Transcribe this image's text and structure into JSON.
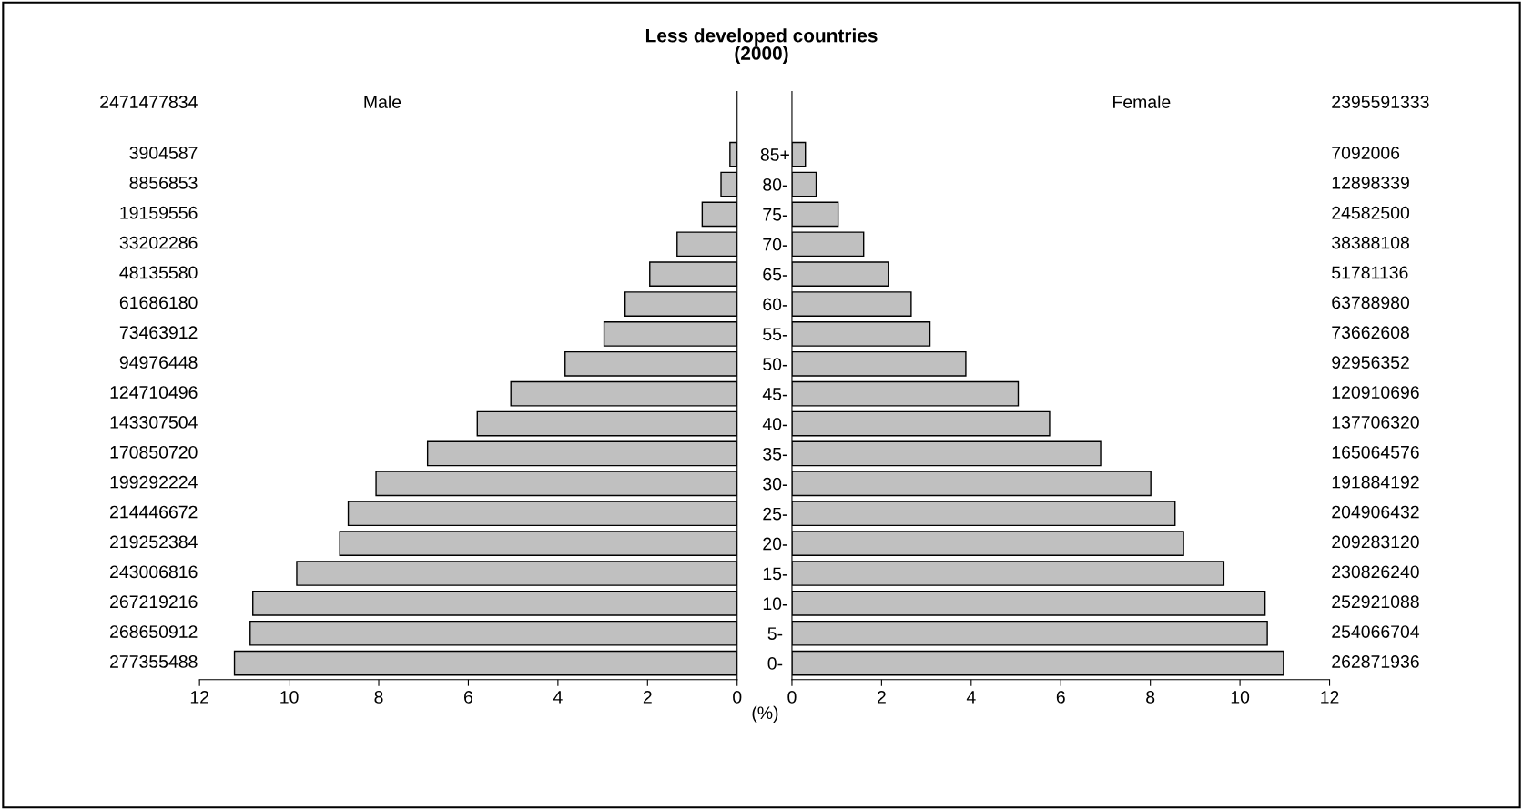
{
  "chart_data": [
    {
      "type": "bar",
      "orientation": "horizontal",
      "title": "Less developed countries\n(2000)",
      "color": "#c0c0c0",
      "categories": [
        "85+",
        "80-",
        "75-",
        "70-",
        "65-",
        "60-",
        "55-",
        "50-",
        "45-",
        "40-",
        "35-",
        "30-",
        "25-",
        "20-",
        "15-",
        "10-",
        "5-",
        "0-"
      ],
      "values": [
        0.16,
        0.36,
        0.78,
        1.34,
        1.95,
        2.5,
        2.97,
        3.84,
        5.05,
        5.8,
        6.91,
        8.06,
        8.68,
        8.87,
        9.83,
        10.81,
        10.87,
        11.22
      ],
      "xlim": [
        12,
        0
      ],
      "xticks": [
        12,
        10,
        8,
        6,
        4,
        2,
        0
      ],
      "annotations": [
        "2471477834",
        "Male",
        "3904587",
        "8856853",
        "19159556",
        "33202286",
        "48135580",
        "61686180",
        "73463912",
        "94976448",
        "124710496",
        "143307504",
        "170850720",
        "199292224",
        "214446672",
        "219252384",
        "243006816",
        "267219216",
        "268650912",
        "277355488",
        "(%)"
      ]
    },
    {
      "type": "bar",
      "orientation": "horizontal",
      "color": "#c0c0c0",
      "tick_labels": "x",
      "values": [
        0.3,
        0.54,
        1.03,
        1.6,
        2.16,
        2.66,
        3.08,
        3.88,
        5.05,
        5.75,
        6.89,
        8.01,
        8.55,
        8.74,
        9.64,
        10.56,
        10.61,
        10.97
      ],
      "xlim": [
        0,
        12
      ],
      "xticks": [
        0,
        2,
        4,
        6,
        8,
        10,
        12
      ],
      "annotations": [
        "2395591333",
        "Female",
        "7092006",
        "12898339",
        "24582500",
        "38388108",
        "51781136",
        "63788980",
        "73662608",
        "92956352",
        "120910696",
        "137706320",
        "165064576",
        "191884192",
        "204906432",
        "209283120",
        "230826240",
        "252921088",
        "254066704",
        "262871936"
      ]
    }
  ]
}
